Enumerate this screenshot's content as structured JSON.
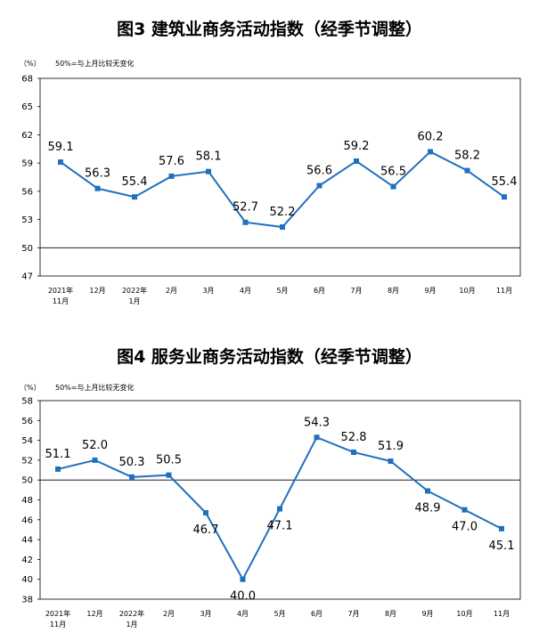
{
  "chart_data": [
    {
      "type": "line",
      "title": "图3  建筑业商务活动指数（经季节调整）",
      "unit": "（%）",
      "note": "50%=与上月比较无变化",
      "categories": [
        [
          "2021年",
          "11月"
        ],
        [
          "12月"
        ],
        [
          "2022年",
          "1月"
        ],
        [
          "2月"
        ],
        [
          "3月"
        ],
        [
          "4月"
        ],
        [
          "5月"
        ],
        [
          "6月"
        ],
        [
          "7月"
        ],
        [
          "8月"
        ],
        [
          "9月"
        ],
        [
          "10月"
        ],
        [
          "11月"
        ]
      ],
      "values": [
        59.1,
        56.3,
        55.4,
        57.6,
        58.1,
        52.7,
        52.2,
        56.6,
        59.2,
        56.5,
        60.2,
        58.2,
        55.4
      ],
      "labels": [
        "59.1",
        "56.3",
        "55.4",
        "57.6",
        "58.1",
        "52.7",
        "52.2",
        "56.6",
        "59.2",
        "56.5",
        "60.2",
        "58.2",
        "55.4"
      ],
      "yticks": [
        "47",
        "50",
        "53",
        "56",
        "59",
        "62",
        "65",
        "68"
      ],
      "ylim": [
        47,
        68
      ],
      "reference": 50,
      "color": "#1f6fbf"
    },
    {
      "type": "line",
      "title": "图4  服务业商务活动指数（经季节调整）",
      "unit": "（%）",
      "note": "50%=与上月比较无变化",
      "categories": [
        [
          "2021年",
          "11月"
        ],
        [
          "12月"
        ],
        [
          "2022年",
          "1月"
        ],
        [
          "2月"
        ],
        [
          "3月"
        ],
        [
          "4月"
        ],
        [
          "5月"
        ],
        [
          "6月"
        ],
        [
          "7月"
        ],
        [
          "8月"
        ],
        [
          "9月"
        ],
        [
          "10月"
        ],
        [
          "11月"
        ]
      ],
      "values": [
        51.1,
        52.0,
        50.3,
        50.5,
        46.7,
        40.0,
        47.1,
        54.3,
        52.8,
        51.9,
        48.9,
        47.0,
        45.1
      ],
      "labels": [
        "51.1",
        "52.0",
        "50.3",
        "50.5",
        "46.7",
        "40.0",
        "47.1",
        "54.3",
        "52.8",
        "51.9",
        "48.9",
        "47.0",
        "45.1"
      ],
      "yticks": [
        "38",
        "40",
        "42",
        "44",
        "46",
        "48",
        "50",
        "52",
        "54",
        "56",
        "58"
      ],
      "ylim": [
        38,
        58
      ],
      "reference": 50,
      "color": "#1f6fbf"
    }
  ]
}
